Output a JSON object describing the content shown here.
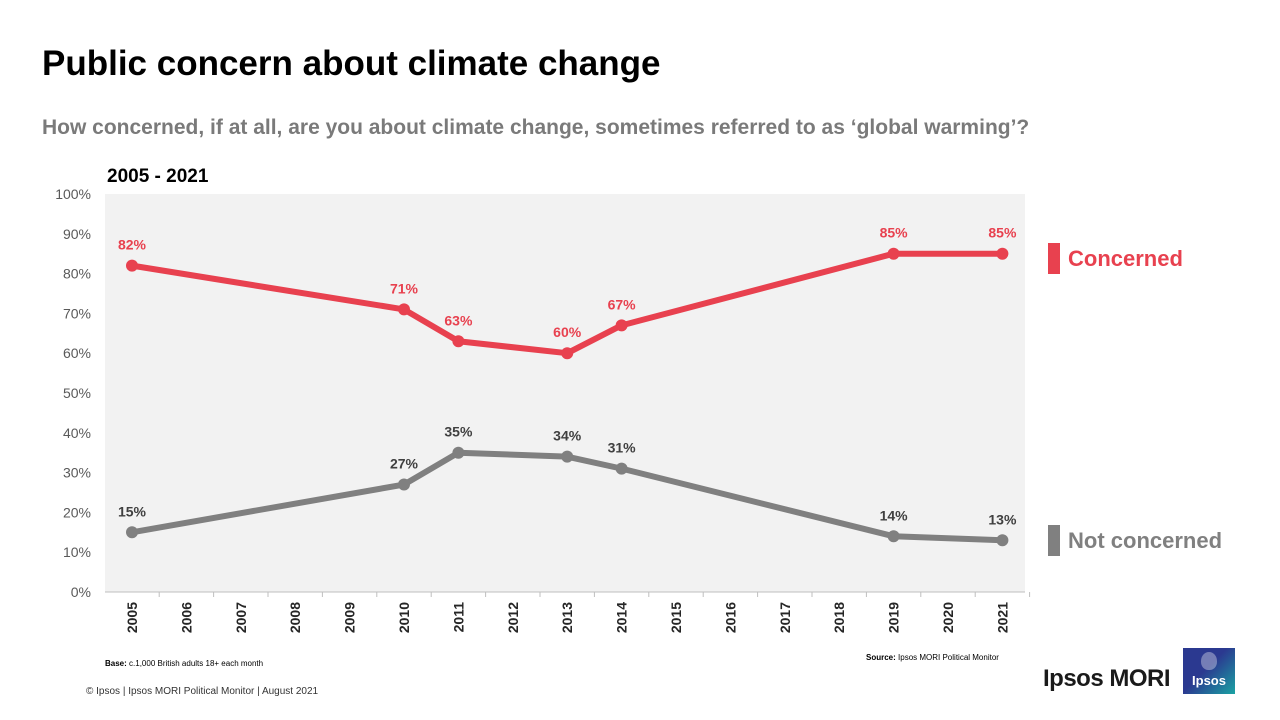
{
  "header": {
    "title": "Public concern about climate change",
    "subtitle": "How concerned, if at all, are you about climate change, sometimes referred to as ‘global warming’?"
  },
  "chart_data": {
    "type": "line",
    "title": "2005 - 2021",
    "x": [
      "2005",
      "2006",
      "2007",
      "2008",
      "2009",
      "2010",
      "2011",
      "2012",
      "2013",
      "2014",
      "2015",
      "2016",
      "2017",
      "2018",
      "2019",
      "2020",
      "2021"
    ],
    "ylim": [
      0,
      100
    ],
    "y_ticks": [
      "0%",
      "10%",
      "20%",
      "30%",
      "40%",
      "50%",
      "60%",
      "70%",
      "80%",
      "90%",
      "100%"
    ],
    "series": [
      {
        "name": "Concerned",
        "color": "#e8414f",
        "points": [
          {
            "x": "2005",
            "y": 82,
            "label": "82%"
          },
          {
            "x": "2010",
            "y": 71,
            "label": "71%"
          },
          {
            "x": "2011",
            "y": 63,
            "label": "63%"
          },
          {
            "x": "2013",
            "y": 60,
            "label": "60%"
          },
          {
            "x": "2014",
            "y": 67,
            "label": "67%"
          },
          {
            "x": "2019",
            "y": 85,
            "label": "85%"
          },
          {
            "x": "2021",
            "y": 85,
            "label": "85%"
          }
        ]
      },
      {
        "name": "Not concerned",
        "color": "#808080",
        "points": [
          {
            "x": "2005",
            "y": 15,
            "label": "15%"
          },
          {
            "x": "2010",
            "y": 27,
            "label": "27%"
          },
          {
            "x": "2011",
            "y": 35,
            "label": "35%"
          },
          {
            "x": "2013",
            "y": 34,
            "label": "34%"
          },
          {
            "x": "2014",
            "y": 31,
            "label": "31%"
          },
          {
            "x": "2019",
            "y": 14,
            "label": "14%"
          },
          {
            "x": "2021",
            "y": 13,
            "label": "13%"
          }
        ]
      }
    ],
    "legend": [
      "Concerned",
      "Not concerned"
    ],
    "plot_background": "#f2f2f2"
  },
  "notes": {
    "base_label": "Base:",
    "base_text": " c.1,000 British adults 18+ each month",
    "source_label": "Source:",
    "source_text": " Ipsos MORI Political Monitor",
    "footer": "© Ipsos | Ipsos MORI Political Monitor | August 2021"
  },
  "brand": {
    "name": "Ipsos MORI",
    "logo_text": "Ipsos"
  }
}
